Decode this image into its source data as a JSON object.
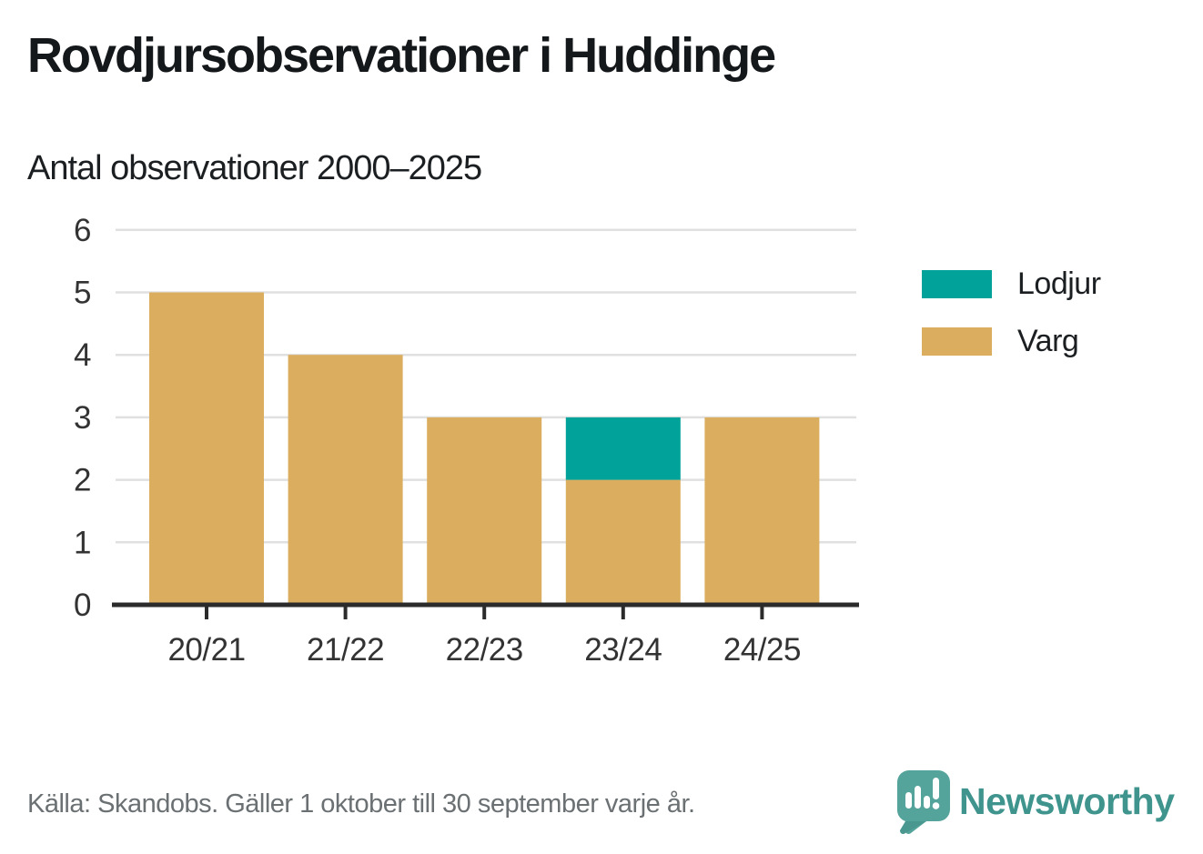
{
  "header": {
    "title": "Rovdjursobservationer i Huddinge",
    "subtitle": "Antal observationer 2000–2025"
  },
  "chart_data": {
    "type": "bar",
    "stacked": true,
    "categories": [
      "20/21",
      "21/22",
      "22/23",
      "23/24",
      "24/25"
    ],
    "series": [
      {
        "name": "Varg",
        "color": "#dbad5f",
        "values": [
          5,
          4,
          3,
          2,
          3
        ]
      },
      {
        "name": "Lodjur",
        "color": "#00a29a",
        "values": [
          0,
          0,
          0,
          1,
          0
        ]
      }
    ],
    "title": "Rovdjursobservationer i Huddinge",
    "subtitle": "Antal observationer 2000–2025",
    "xlabel": "",
    "ylabel": "",
    "ylim": [
      0,
      6
    ],
    "yticks": [
      0,
      1,
      2,
      3,
      4,
      5,
      6
    ],
    "grid": true,
    "legend_position": "right",
    "legend_order": [
      "Lodjur",
      "Varg"
    ]
  },
  "legend": {
    "items": [
      {
        "label": "Lodjur",
        "color": "#00a29a"
      },
      {
        "label": "Varg",
        "color": "#dbad5f"
      }
    ]
  },
  "footer": {
    "source": "Källa: Skandobs. Gäller 1 oktober till 30 september varje år.",
    "brand": "Newsworthy"
  },
  "colors": {
    "varg": "#dbad5f",
    "lodjur": "#00a29a",
    "axis_line": "#2b2b2b",
    "gridline": "#e0e0e0",
    "tick_label": "#333333",
    "source_text": "#6b7073",
    "brand_teal": "#3f948e",
    "logo_bubble": "#55a49c"
  }
}
